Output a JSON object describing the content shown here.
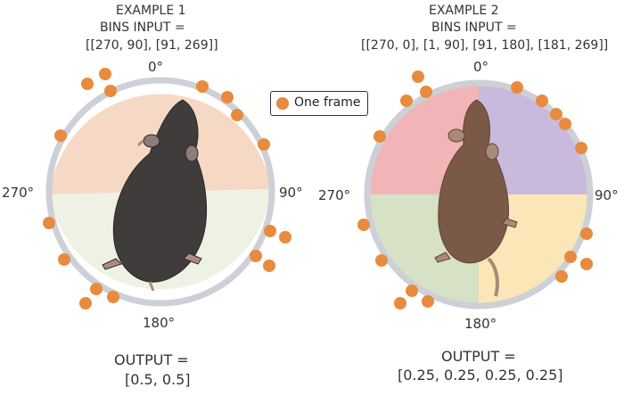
{
  "example1": {
    "title": "EXAMPLE 1",
    "bins_line1": "BINS INPUT =",
    "bins_line2": "[[270, 90], [91, 269]]",
    "output_line1": "OUTPUT =",
    "output_line2": "[0.5, 0.5]"
  },
  "example2": {
    "title": "EXAMPLE 2",
    "bins_line1": "BINS INPUT =",
    "bins_line2": "[[270, 0], [1, 90], [91, 180], [181, 269]]",
    "output_line1": "OUTPUT =",
    "output_line2": "[0.25, 0.25, 0.25, 0.25]"
  },
  "angles": {
    "top": "0°",
    "right": "90°",
    "bottom": "180°",
    "left": "270°"
  },
  "legend": {
    "label": "One frame"
  },
  "colors": {
    "frame_dot": "#e88b3e",
    "ring": "#cdd0d6",
    "ex1_top": "#f6d9c4",
    "ex1_bottom": "#eef2e4",
    "ex2_q1": "#f2b5b7",
    "ex2_q2": "#c9b9dc",
    "ex2_q3": "#fbe6b8",
    "ex2_q4": "#d6e1c6",
    "mouse1": "#3f3c3b",
    "mouse2": "#7a5a46"
  }
}
